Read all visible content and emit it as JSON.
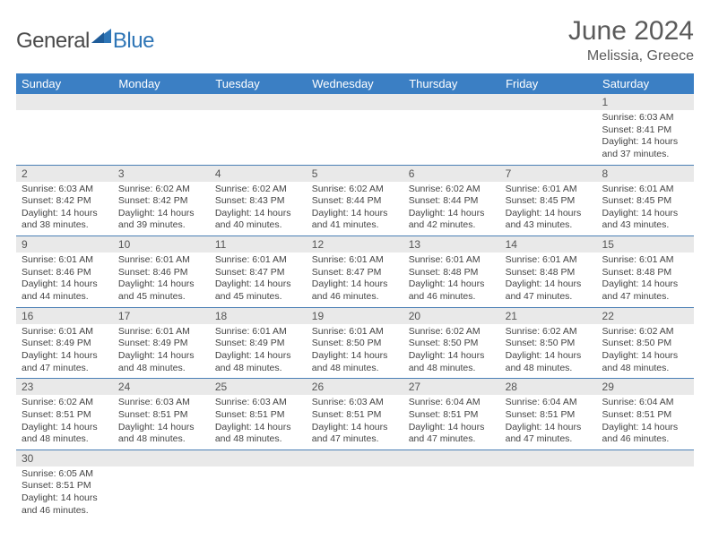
{
  "logo": {
    "general": "General",
    "blue": "Blue"
  },
  "title": "June 2024",
  "subtitle": "Melissia, Greece",
  "colors": {
    "header_bg": "#3b7fc4",
    "header_text": "#ffffff",
    "daynum_bg": "#e9e9e9",
    "row_border": "#4a7fb5",
    "body_text": "#444444",
    "title_text": "#5a5a5a",
    "logo_blue": "#2e75b6"
  },
  "weekdays": [
    "Sunday",
    "Monday",
    "Tuesday",
    "Wednesday",
    "Thursday",
    "Friday",
    "Saturday"
  ],
  "labels": {
    "sunrise": "Sunrise:",
    "sunset": "Sunset:",
    "daylight_prefix": "Daylight:",
    "hours_word": "hours",
    "and_word": "and",
    "minutes_word": "minutes."
  },
  "weeks": [
    [
      null,
      null,
      null,
      null,
      null,
      null,
      {
        "n": "1",
        "sunrise": "6:03 AM",
        "sunset": "8:41 PM",
        "dh": "14",
        "dm": "37"
      }
    ],
    [
      {
        "n": "2",
        "sunrise": "6:03 AM",
        "sunset": "8:42 PM",
        "dh": "14",
        "dm": "38"
      },
      {
        "n": "3",
        "sunrise": "6:02 AM",
        "sunset": "8:42 PM",
        "dh": "14",
        "dm": "39"
      },
      {
        "n": "4",
        "sunrise": "6:02 AM",
        "sunset": "8:43 PM",
        "dh": "14",
        "dm": "40"
      },
      {
        "n": "5",
        "sunrise": "6:02 AM",
        "sunset": "8:44 PM",
        "dh": "14",
        "dm": "41"
      },
      {
        "n": "6",
        "sunrise": "6:02 AM",
        "sunset": "8:44 PM",
        "dh": "14",
        "dm": "42"
      },
      {
        "n": "7",
        "sunrise": "6:01 AM",
        "sunset": "8:45 PM",
        "dh": "14",
        "dm": "43"
      },
      {
        "n": "8",
        "sunrise": "6:01 AM",
        "sunset": "8:45 PM",
        "dh": "14",
        "dm": "43"
      }
    ],
    [
      {
        "n": "9",
        "sunrise": "6:01 AM",
        "sunset": "8:46 PM",
        "dh": "14",
        "dm": "44"
      },
      {
        "n": "10",
        "sunrise": "6:01 AM",
        "sunset": "8:46 PM",
        "dh": "14",
        "dm": "45"
      },
      {
        "n": "11",
        "sunrise": "6:01 AM",
        "sunset": "8:47 PM",
        "dh": "14",
        "dm": "45"
      },
      {
        "n": "12",
        "sunrise": "6:01 AM",
        "sunset": "8:47 PM",
        "dh": "14",
        "dm": "46"
      },
      {
        "n": "13",
        "sunrise": "6:01 AM",
        "sunset": "8:48 PM",
        "dh": "14",
        "dm": "46"
      },
      {
        "n": "14",
        "sunrise": "6:01 AM",
        "sunset": "8:48 PM",
        "dh": "14",
        "dm": "47"
      },
      {
        "n": "15",
        "sunrise": "6:01 AM",
        "sunset": "8:48 PM",
        "dh": "14",
        "dm": "47"
      }
    ],
    [
      {
        "n": "16",
        "sunrise": "6:01 AM",
        "sunset": "8:49 PM",
        "dh": "14",
        "dm": "47"
      },
      {
        "n": "17",
        "sunrise": "6:01 AM",
        "sunset": "8:49 PM",
        "dh": "14",
        "dm": "48"
      },
      {
        "n": "18",
        "sunrise": "6:01 AM",
        "sunset": "8:49 PM",
        "dh": "14",
        "dm": "48"
      },
      {
        "n": "19",
        "sunrise": "6:01 AM",
        "sunset": "8:50 PM",
        "dh": "14",
        "dm": "48"
      },
      {
        "n": "20",
        "sunrise": "6:02 AM",
        "sunset": "8:50 PM",
        "dh": "14",
        "dm": "48"
      },
      {
        "n": "21",
        "sunrise": "6:02 AM",
        "sunset": "8:50 PM",
        "dh": "14",
        "dm": "48"
      },
      {
        "n": "22",
        "sunrise": "6:02 AM",
        "sunset": "8:50 PM",
        "dh": "14",
        "dm": "48"
      }
    ],
    [
      {
        "n": "23",
        "sunrise": "6:02 AM",
        "sunset": "8:51 PM",
        "dh": "14",
        "dm": "48"
      },
      {
        "n": "24",
        "sunrise": "6:03 AM",
        "sunset": "8:51 PM",
        "dh": "14",
        "dm": "48"
      },
      {
        "n": "25",
        "sunrise": "6:03 AM",
        "sunset": "8:51 PM",
        "dh": "14",
        "dm": "48"
      },
      {
        "n": "26",
        "sunrise": "6:03 AM",
        "sunset": "8:51 PM",
        "dh": "14",
        "dm": "47"
      },
      {
        "n": "27",
        "sunrise": "6:04 AM",
        "sunset": "8:51 PM",
        "dh": "14",
        "dm": "47"
      },
      {
        "n": "28",
        "sunrise": "6:04 AM",
        "sunset": "8:51 PM",
        "dh": "14",
        "dm": "47"
      },
      {
        "n": "29",
        "sunrise": "6:04 AM",
        "sunset": "8:51 PM",
        "dh": "14",
        "dm": "46"
      }
    ],
    [
      {
        "n": "30",
        "sunrise": "6:05 AM",
        "sunset": "8:51 PM",
        "dh": "14",
        "dm": "46"
      },
      null,
      null,
      null,
      null,
      null,
      null
    ]
  ]
}
